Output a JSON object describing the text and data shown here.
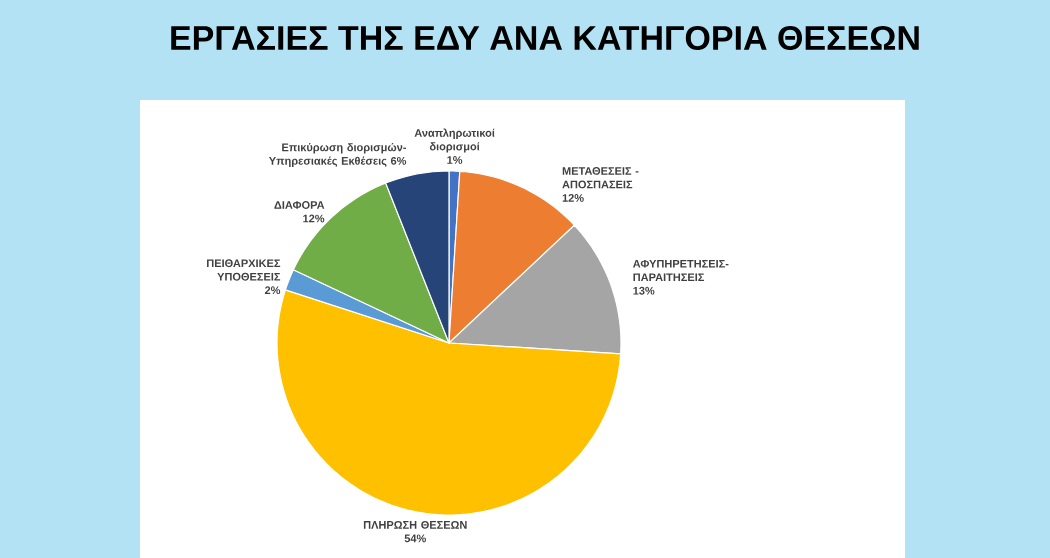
{
  "chart_data": {
    "type": "pie",
    "title": "ΕΡΓΑΣΙΕΣ ΤΗΣ ΕΔΥ ΑΝΑ ΚΑΤΗΓΟΡΙΑ ΘΕΣΕΩΝ",
    "categories": [
      "Αναπληρωτικοί διορισμοί",
      "ΜΕΤΑΘΕΣΕΙΣ - ΑΠΟΣΠΑΣΕΙΣ",
      "ΑΦΥΠΗΡΕΤΗΣΕΙΣ-ΠΑΡΑΙΤΗΣΕΙΣ",
      "ΠΛΗΡΩΣΗ ΘΕΣΕΩΝ",
      "ΠΕΙΘΑΡΧΙΚΕΣ ΥΠΟΘΕΣΕΙΣ",
      "ΔΙΑΦΟΡΑ",
      "Επικύρωση διορισμών-Υπηρεσιακές Εκθέσεις"
    ],
    "values": [
      1,
      12,
      13,
      54,
      2,
      12,
      6
    ],
    "value_labels": [
      "1%",
      "12%",
      "13%",
      "54%",
      "2%",
      "12%",
      "6%"
    ],
    "colors": [
      "#4472c4",
      "#ed7d31",
      "#a5a5a5",
      "#ffc000",
      "#5b9bd5",
      "#70ad47",
      "#264478"
    ]
  }
}
